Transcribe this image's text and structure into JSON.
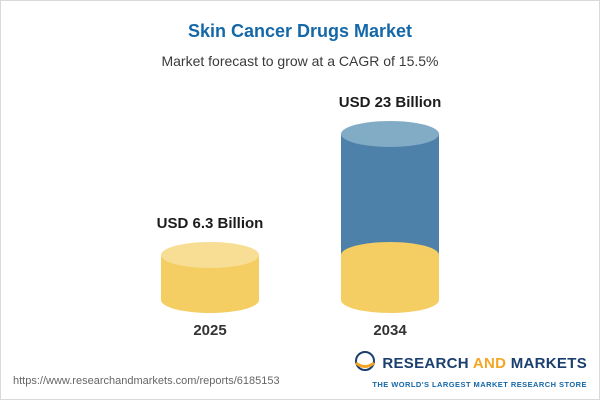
{
  "chart_data": {
    "type": "bar",
    "bar_style": "cylinder",
    "title": "Skin Cancer Drugs Market",
    "subtitle": "Market forecast to grow at a CAGR of 15.5%",
    "categories": [
      "2025",
      "2034"
    ],
    "values": [
      6.3,
      23
    ],
    "unit": "USD Billion",
    "value_labels": [
      "USD 6.3 Billion",
      "USD 23 Billion"
    ],
    "cagr_percent": 15.5,
    "legend": "none",
    "grid": false,
    "colors": {
      "base_segment": "#F4CE63",
      "growth_segment": "#4D81A9",
      "title_text": "#1568A8"
    }
  },
  "footer": {
    "url": "https://www.researchandmarkets.com/reports/6185153",
    "brand": {
      "research": "RESEARCH",
      "and": "AND",
      "markets": "MARKETS",
      "tagline": "THE WORLD'S LARGEST MARKET RESEARCH STORE"
    }
  }
}
